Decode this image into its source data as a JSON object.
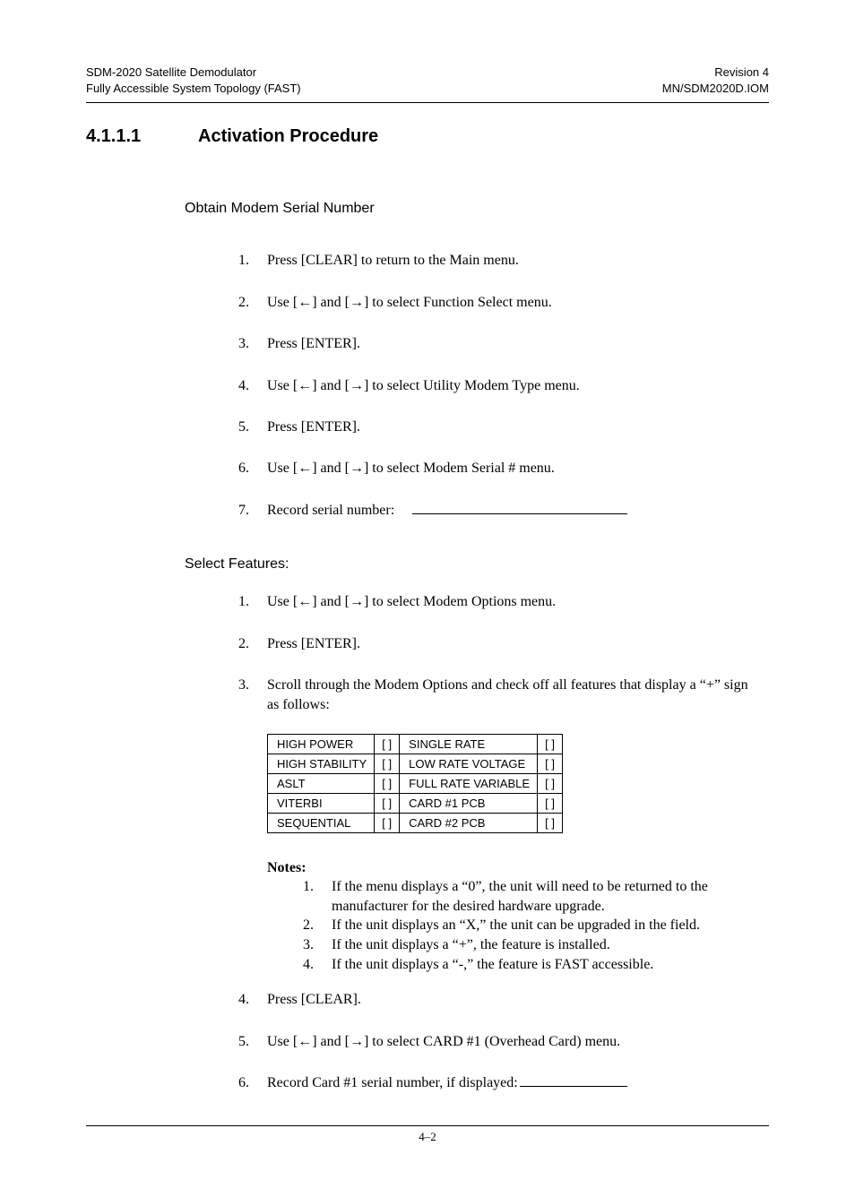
{
  "header": {
    "left1": "SDM-2020 Satellite Demodulator",
    "left2": "Fully Accessible System Topology (FAST)",
    "right1": "Revision 4",
    "right2": "MN/SDM2020D.IOM"
  },
  "section": {
    "number": "4.1.1.1",
    "title": "Activation Procedure"
  },
  "sub1": {
    "heading": "Obtain Modem Serial Number",
    "items": [
      "Press [CLEAR] to return to the Main menu.",
      "Use [←] and [→] to select Function Select menu.",
      "Press [ENTER].",
      "Use [←] and [→] to select Utility Modem Type menu.",
      "Press [ENTER].",
      "Use [←] and [→] to select Modem Serial # menu.",
      "Record serial number:"
    ]
  },
  "sub2": {
    "heading": "Select Features:",
    "item1": "Use [←] and [→] to select Modem Options menu.",
    "item2": "Press [ENTER].",
    "item3": "Scroll through the Modem Options and check off all features that display a “+” sign as follows:",
    "item4": "Press [CLEAR].",
    "item5": "Use [←] and [→] to select CARD #1 (Overhead Card) menu.",
    "item6": "Record Card #1 serial number, if displayed:"
  },
  "features": {
    "rows": [
      [
        "HIGH POWER",
        "[ ]",
        "SINGLE RATE",
        "[ ]"
      ],
      [
        "HIGH STABILITY",
        "[ ]",
        "LOW RATE VOLTAGE",
        "[ ]"
      ],
      [
        "ASLT",
        "[ ]",
        "FULL RATE VARIABLE",
        "[ ]"
      ],
      [
        "VITERBI",
        "[ ]",
        "CARD #1 PCB",
        "[ ]"
      ],
      [
        "SEQUENTIAL",
        "[ ]",
        "CARD #2 PCB",
        "[ ]"
      ]
    ]
  },
  "notes": {
    "label": "Notes:",
    "items": [
      "If the menu displays a “0”, the unit will need to be returned to the manufacturer for the desired hardware upgrade.",
      "If the unit displays an “X,” the unit can be upgraded in the field.",
      "If the unit displays a “+”, the feature is installed.",
      "If the unit displays a “-,” the feature is FAST accessible."
    ]
  },
  "pageNumber": "4–2"
}
